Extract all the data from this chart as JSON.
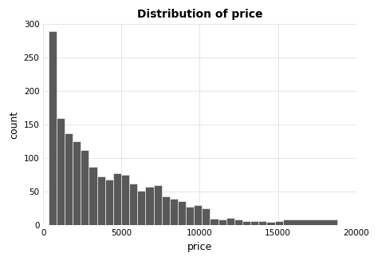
{
  "title": "Distribution of price",
  "xlabel": "price",
  "ylabel": "count",
  "bar_color": "#595959",
  "bar_edgecolor": "#ffffff",
  "background_color": "#ffffff",
  "panel_facecolor": "#ffffff",
  "grid_color": "#e5e5e5",
  "xlim": [
    0,
    20000
  ],
  "ylim": [
    0,
    300
  ],
  "xticks": [
    0,
    5000,
    10000,
    15000,
    20000
  ],
  "yticks": [
    0,
    50,
    100,
    150,
    200,
    250,
    300
  ],
  "bin_edges": [
    326,
    843,
    1360,
    1877,
    2394,
    2911,
    3428,
    3945,
    4462,
    4979,
    5496,
    6013,
    6530,
    7047,
    7564,
    8081,
    8598,
    9115,
    9632,
    10149,
    10666,
    11183,
    11700,
    12217,
    12734,
    13251,
    13768,
    14285,
    14802,
    15319,
    18823
  ],
  "bin_counts": [
    290,
    160,
    138,
    125,
    112,
    88,
    73,
    68,
    78,
    75,
    62,
    52,
    58,
    60,
    43,
    40,
    36,
    28,
    30,
    25,
    10,
    9,
    11,
    9,
    7,
    7,
    6,
    5,
    7,
    9
  ]
}
